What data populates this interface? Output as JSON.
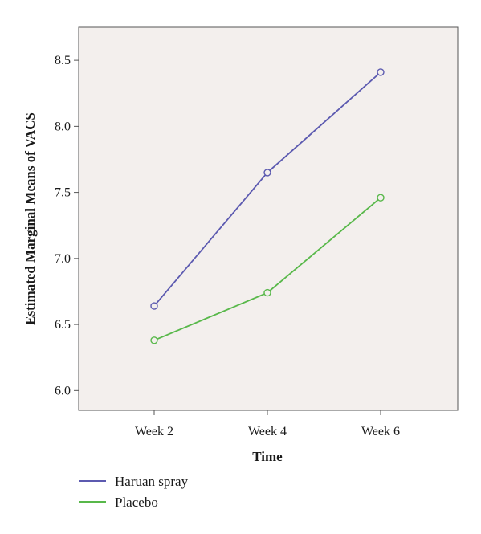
{
  "chart_data": {
    "type": "line",
    "title": "",
    "xlabel": "Time",
    "ylabel": "Estimated Marginal Means of VACS",
    "categories": [
      "Week 2",
      "Week 4",
      "Week 6"
    ],
    "ylim": [
      5.85,
      8.75
    ],
    "yticks": [
      6.0,
      6.5,
      7.0,
      7.5,
      8.0,
      8.5
    ],
    "ytick_labels": [
      "6.0",
      "6.5",
      "7.0",
      "7.5",
      "8.0",
      "8.5"
    ],
    "grid": false,
    "legend_position": "bottom-left",
    "background_color": "#f3efed",
    "series": [
      {
        "name": "Haruan spray",
        "color": "#5c5ab0",
        "values": [
          6.64,
          7.65,
          8.41
        ]
      },
      {
        "name": "Placebo",
        "color": "#58b84a",
        "values": [
          6.38,
          6.74,
          7.46
        ]
      }
    ]
  }
}
